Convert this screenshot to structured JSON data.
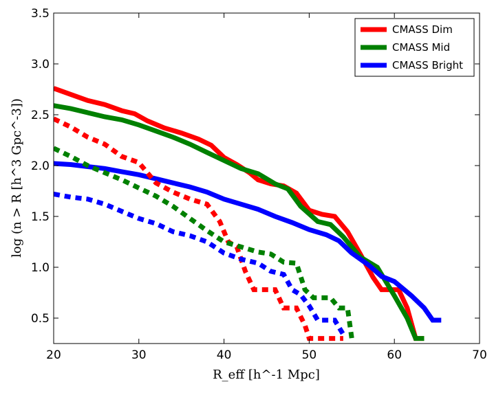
{
  "chart_data": {
    "type": "line",
    "title": "",
    "xlabel": "R_eff [h^-1 Mpc]",
    "ylabel": "log (n > R [h^3 Gpc^-3])",
    "xlim": [
      20,
      70
    ],
    "ylim": [
      0.25,
      3.5
    ],
    "xticks": [
      20,
      30,
      40,
      50,
      60,
      70
    ],
    "yticks": [
      0.5,
      1.0,
      1.5,
      2.0,
      2.5,
      3.0,
      3.5
    ],
    "xtick_labels": [
      "20",
      "30",
      "40",
      "50",
      "60",
      "70"
    ],
    "ytick_labels": [
      "0.5",
      "1.0",
      "1.5",
      "2.0",
      "2.5",
      "3.0",
      "3.5"
    ],
    "grid": false,
    "legend_position": "top-right",
    "series": [
      {
        "name": "CMASS Dim",
        "color": "#ff0000",
        "style": "solid",
        "x": [
          20,
          22,
          24,
          26,
          28,
          29.5,
          31,
          33,
          35,
          37,
          38.5,
          40,
          41.5,
          43,
          44,
          45.5,
          47,
          48.5,
          50,
          51.5,
          53,
          54.5,
          56,
          57.5,
          58.5,
          60.5,
          61.5,
          62.5,
          63.5
        ],
        "y": [
          2.76,
          2.7,
          2.64,
          2.6,
          2.54,
          2.51,
          2.44,
          2.37,
          2.32,
          2.26,
          2.2,
          2.08,
          2.01,
          1.93,
          1.86,
          1.82,
          1.8,
          1.73,
          1.56,
          1.52,
          1.5,
          1.35,
          1.13,
          0.9,
          0.78,
          0.78,
          0.6,
          0.3,
          0.3
        ]
      },
      {
        "name": "CMASS Mid",
        "color": "#008000",
        "style": "solid",
        "x": [
          20,
          22,
          24,
          26,
          28,
          30,
          32,
          34,
          36,
          38,
          40,
          42,
          44,
          46,
          47.5,
          49,
          51,
          52.5,
          54,
          56,
          58,
          60,
          61.5,
          62.5,
          63.5
        ],
        "y": [
          2.59,
          2.56,
          2.52,
          2.48,
          2.45,
          2.4,
          2.34,
          2.28,
          2.21,
          2.13,
          2.05,
          1.97,
          1.92,
          1.82,
          1.77,
          1.6,
          1.45,
          1.42,
          1.3,
          1.1,
          1.0,
          0.72,
          0.5,
          0.3,
          0.3
        ]
      },
      {
        "name": "CMASS Bright",
        "color": "#0000ff",
        "style": "solid",
        "x": [
          20,
          22,
          24,
          26,
          28,
          30,
          32,
          34,
          36,
          38,
          40,
          42,
          44,
          46,
          48,
          50,
          52,
          53.5,
          55,
          57,
          58.5,
          60,
          62,
          63.5,
          64.5,
          65.5
        ],
        "y": [
          2.02,
          2.01,
          1.99,
          1.97,
          1.94,
          1.91,
          1.87,
          1.83,
          1.79,
          1.74,
          1.67,
          1.62,
          1.57,
          1.5,
          1.44,
          1.37,
          1.32,
          1.26,
          1.14,
          1.02,
          0.91,
          0.86,
          0.72,
          0.6,
          0.48,
          0.48
        ]
      },
      {
        "name": "",
        "color": "#ff0000",
        "style": "dashed",
        "x": [
          20,
          22,
          24,
          26,
          28,
          30,
          32,
          34,
          36,
          38,
          39.5,
          40.5,
          41.5,
          42.5,
          43.5,
          45,
          46,
          47,
          48,
          48.5,
          49.5,
          50,
          51,
          52.5,
          54
        ],
        "y": [
          2.46,
          2.38,
          2.28,
          2.21,
          2.09,
          2.03,
          1.83,
          1.74,
          1.67,
          1.62,
          1.45,
          1.25,
          1.2,
          0.96,
          0.78,
          0.78,
          0.78,
          0.6,
          0.6,
          0.6,
          0.43,
          0.3,
          0.3,
          0.3,
          0.3
        ]
      },
      {
        "name": "",
        "color": "#008000",
        "style": "dashed",
        "x": [
          20,
          22,
          24,
          26,
          28,
          30,
          32,
          34,
          36,
          38,
          40,
          42,
          44,
          45.5,
          47,
          48.5,
          49.5,
          50.5,
          52.5,
          53.5,
          54.5,
          55
        ],
        "y": [
          2.17,
          2.09,
          2.0,
          1.93,
          1.86,
          1.78,
          1.7,
          1.6,
          1.48,
          1.36,
          1.25,
          1.2,
          1.15,
          1.13,
          1.05,
          1.04,
          0.78,
          0.7,
          0.7,
          0.6,
          0.6,
          0.3
        ]
      },
      {
        "name": "",
        "color": "#0000ff",
        "style": "dashed",
        "x": [
          20,
          22,
          24,
          26,
          28,
          30,
          32,
          34,
          36,
          38,
          40,
          42,
          44,
          45.5,
          47,
          48,
          49,
          50,
          51,
          52,
          53,
          54
        ],
        "y": [
          1.72,
          1.69,
          1.67,
          1.62,
          1.55,
          1.48,
          1.43,
          1.35,
          1.31,
          1.25,
          1.14,
          1.08,
          1.04,
          0.96,
          0.93,
          0.78,
          0.73,
          0.62,
          0.48,
          0.48,
          0.48,
          0.34
        ]
      }
    ]
  }
}
